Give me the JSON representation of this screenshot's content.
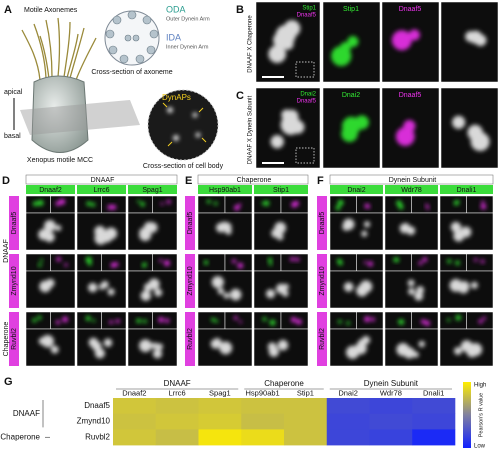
{
  "panel_a": {
    "label": "A",
    "axonemes": "Motile Axonemes",
    "oda": "ODA",
    "oda_full": "Outer Dynein Arm",
    "ida": "IDA",
    "ida_full": "Inner Dynein Arm",
    "axoneme_caption": "Cross-section of axoneme",
    "apical": "apical",
    "basal": "basal",
    "cell_caption": "Xenopus motile MCC",
    "dynaps": "DynAPs",
    "body_caption": "Cross-section of cell body"
  },
  "panel_b": {
    "label": "B",
    "side": "DNAAF X Chaperone",
    "green": "Stip1",
    "magenta": "Dnaaf5"
  },
  "panel_c": {
    "label": "C",
    "side": "DNAAF X Dynein Subunit",
    "green": "Dnai2",
    "magenta": "Dnaaf5"
  },
  "panels": [
    {
      "label": "D",
      "group": "DNAAF",
      "columns": [
        "Dnaaf2",
        "Lrrc6",
        "Spag1"
      ]
    },
    {
      "label": "E",
      "group": "Chaperone",
      "columns": [
        "Hsp90ab1",
        "Stip1"
      ]
    },
    {
      "label": "F",
      "group": "Dynein Subunit",
      "columns": [
        "Dnai2",
        "Wdr78",
        "Dnali1"
      ]
    }
  ],
  "rows": [
    "Dnaaf5",
    "Zmynd10",
    "Ruvbl2"
  ],
  "row_groups": [
    "DNAAF",
    "Chaperone"
  ],
  "heatmap": {
    "label": "G",
    "high": "High",
    "low": "Low",
    "scale_label": "Pearson's R value",
    "values": [
      [
        0.82,
        0.8,
        0.82,
        0.8,
        0.8,
        0.22,
        0.2,
        0.22
      ],
      [
        0.8,
        0.82,
        0.84,
        0.78,
        0.8,
        0.2,
        0.22,
        0.2
      ],
      [
        0.82,
        0.78,
        0.96,
        0.92,
        0.8,
        0.2,
        0.18,
        0.05
      ]
    ]
  }
}
